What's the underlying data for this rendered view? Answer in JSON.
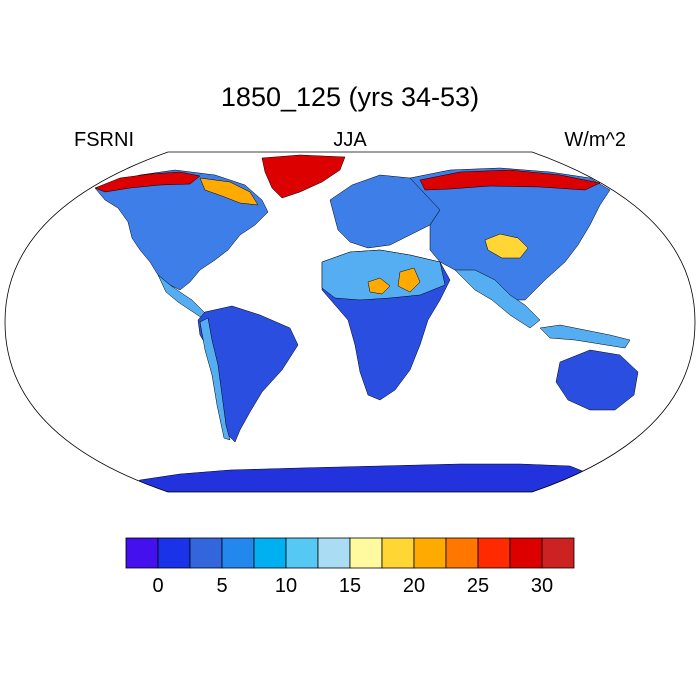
{
  "title": "1850_125 (yrs 34-53)",
  "left_label": "FSRNI",
  "center_label": "JJA",
  "right_label": "W/m^2",
  "colorbar": {
    "colors": [
      "#4411ee",
      "#1a33e8",
      "#3366dd",
      "#2288ee",
      "#00b0f0",
      "#55c8f4",
      "#aadcf4",
      "#fff9a0",
      "#ffd633",
      "#ffaa00",
      "#ff7700",
      "#ff2a00",
      "#dd0000",
      "#cc2222"
    ],
    "ticks": [
      "0",
      "5",
      "10",
      "15",
      "20",
      "25",
      "30"
    ]
  },
  "map_colors": {
    "ocean": "#ffffff",
    "low": "#2a4fe0",
    "mid": "#3d7ee8",
    "light": "#55aef2",
    "antarctica": "#2233dd",
    "hot": "#ffaa00",
    "red": "#dd0000",
    "yellow": "#ffd633"
  }
}
